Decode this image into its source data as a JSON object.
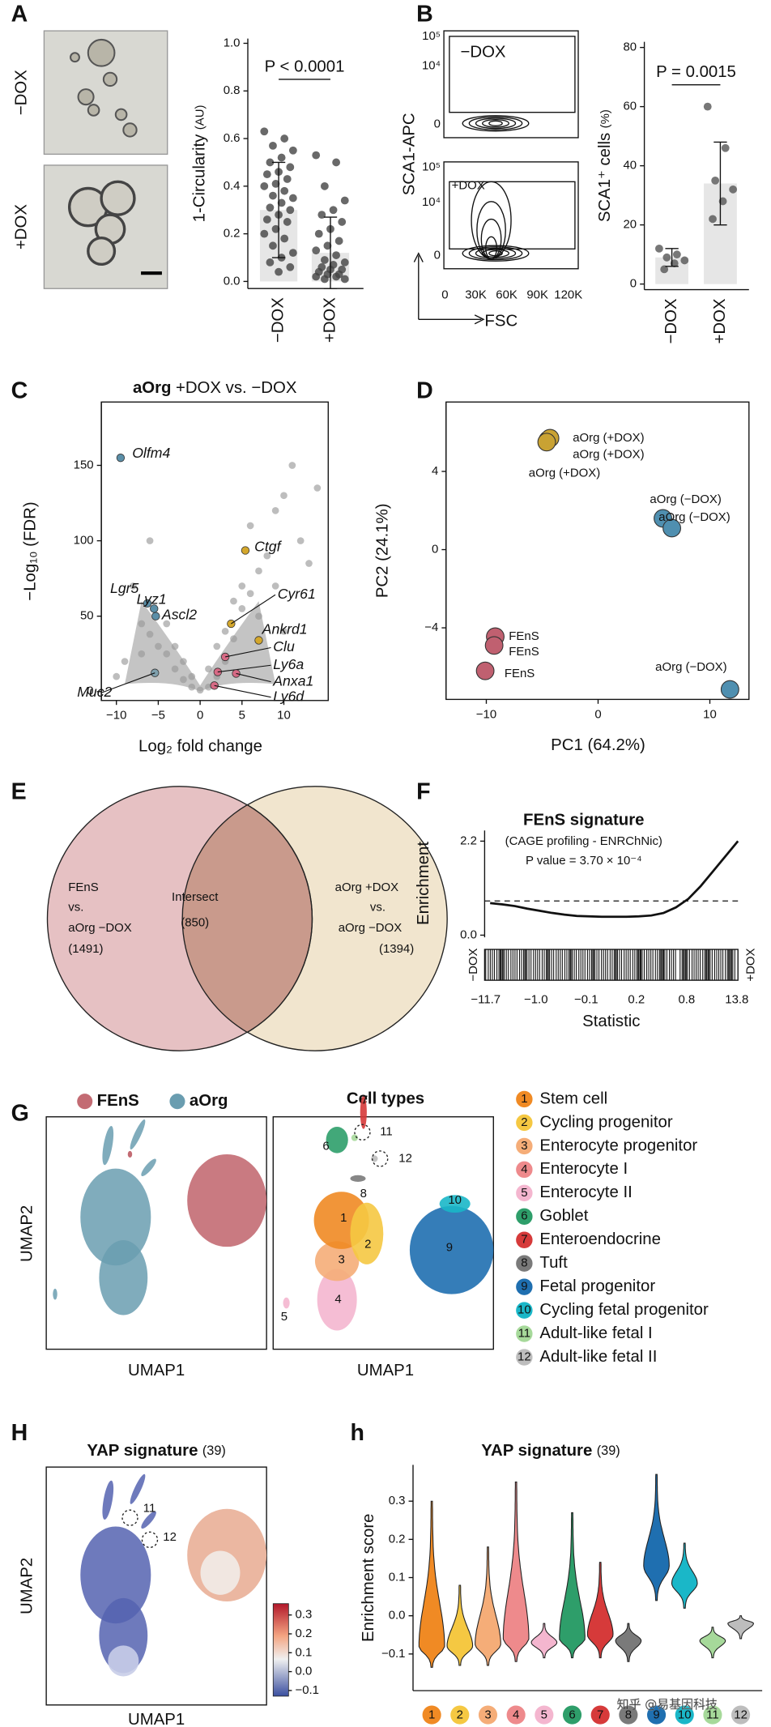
{
  "panel_labels": [
    "A",
    "B",
    "C",
    "D",
    "E",
    "F",
    "G",
    "H",
    "h"
  ],
  "panel_a": {
    "row_labels": [
      "−DOX",
      "+DOX"
    ]
  },
  "panel_b_flow": {
    "ylabel": "SCA1-APC",
    "xlabel": "FSC",
    "panels": [
      "−DOX",
      "+DOX"
    ],
    "yticks": [
      "10⁵",
      "10⁴",
      "0"
    ],
    "xticks": [
      "0",
      "30K",
      "60K",
      "90K",
      "120K"
    ]
  },
  "venn": {
    "left": [
      "FEnS",
      "vs.",
      "aOrg −DOX",
      "(1491)"
    ],
    "intersect": [
      "Intersect",
      "(850)"
    ],
    "right": [
      "aOrg +DOX",
      "vs.",
      "aOrg −DOX",
      "(1394)"
    ]
  },
  "umap_source": {
    "legend": [
      {
        "name": "FEnS",
        "color": "#c36b73"
      },
      {
        "name": "aOrg",
        "color": "#6a9db0"
      }
    ],
    "xlabel": "UMAP1",
    "ylabel": "UMAP2"
  },
  "umap_cell_types": {
    "title": "Cell types",
    "xlabel": "UMAP1",
    "legend": [
      {
        "number": 1,
        "name": "Stem cell",
        "color": "#f08a24"
      },
      {
        "number": 2,
        "name": "Cycling progenitor",
        "color": "#f5c842"
      },
      {
        "number": 3,
        "name": "Enterocyte progenitor",
        "color": "#f5ad78"
      },
      {
        "number": 4,
        "name": "Enterocyte I",
        "color": "#ee8a8c"
      },
      {
        "number": 5,
        "name": "Enterocyte II",
        "color": "#f4b6cf"
      },
      {
        "number": 6,
        "name": "Goblet",
        "color": "#2e9e6a"
      },
      {
        "number": 7,
        "name": "Enteroendocrine",
        "color": "#d63a3a"
      },
      {
        "number": 8,
        "name": "Tuft",
        "color": "#7a7a7a"
      },
      {
        "number": 9,
        "name": "Fetal progenitor",
        "color": "#1f6fb0"
      },
      {
        "number": 10,
        "name": "Cycling fetal progenitor",
        "color": "#1ab7c8"
      },
      {
        "number": 11,
        "name": "Adult-like fetal I",
        "color": "#a6d99a"
      },
      {
        "number": 12,
        "name": "Adult-like fetal II",
        "color": "#bdbdbd"
      }
    ]
  },
  "umap_yap": {
    "title": "YAP signature",
    "title_note": "(39)",
    "cluster_labels": [
      11,
      12
    ],
    "xlabel": "UMAP1",
    "ylabel": "UMAP2",
    "colorbar": {
      "lim": [
        -0.13,
        0.36
      ],
      "ticks": [
        0.3,
        0.2,
        0.1,
        {
          "value": 0,
          "label": "0.0"
        },
        {
          "value": -0.1,
          "label": "−0.1"
        }
      ]
    }
  },
  "watermark": "知乎 @易基因科技",
  "chart_data": [
    {
      "type": "bar",
      "ylabel": "1-Circularity",
      "ylabel_unit": "(AU)",
      "categories": [
        "−DOX",
        "+DOX"
      ],
      "values": [
        0.3,
        0.12
      ],
      "errors": [
        0.2,
        0.15
      ],
      "color": "#e6e6e6",
      "point_color": "#444444",
      "annotation": "P < 0.0001",
      "points": [
        [
          0.63,
          0.6,
          0.57,
          0.55,
          0.52,
          0.5,
          0.48,
          0.46,
          0.45,
          0.43,
          0.41,
          0.4,
          0.38,
          0.36,
          0.35,
          0.33,
          0.31,
          0.3,
          0.28,
          0.26,
          0.25,
          0.22,
          0.2,
          0.18,
          0.15,
          0.12,
          0.1,
          0.08,
          0.06,
          0.04
        ],
        [
          0.53,
          0.5,
          0.4,
          0.34,
          0.3,
          0.28,
          0.25,
          0.22,
          0.2,
          0.17,
          0.15,
          0.13,
          0.11,
          0.09,
          0.08,
          0.07,
          0.06,
          0.05,
          0.05,
          0.04,
          0.03,
          0.03,
          0.02,
          0.02,
          0.01,
          0.01
        ]
      ],
      "ylim": [
        -0.03,
        1.02
      ],
      "yticks": [
        {
          "value": 0,
          "label": "0.0"
        },
        0.2,
        0.4,
        0.6,
        0.8,
        {
          "value": 1,
          "label": "1.0"
        }
      ]
    },
    {
      "type": "bar",
      "ylabel": "SCA1⁺ cells",
      "ylabel_unit": "(%)",
      "categories": [
        "−DOX",
        "+DOX"
      ],
      "values": [
        9,
        34
      ],
      "errors": [
        3,
        14
      ],
      "color": "#e6e6e6",
      "point_color": "#555555",
      "annotation": "P = 0.0015",
      "points": [
        [
          12,
          10,
          9,
          8,
          7,
          5
        ],
        [
          60,
          46,
          35,
          32,
          28,
          22
        ]
      ],
      "ylim": [
        -1.9,
        81.9
      ],
      "yticks": [
        0,
        20,
        40,
        60,
        80
      ]
    },
    {
      "type": "scatter",
      "title_bold": "aOrg",
      "title": "+DOX vs. −DOX",
      "xlabel": "Log₂ fold change",
      "ylabel": "−Log₁₀ (FDR)",
      "color": "#9a9a9a",
      "x": [
        -8,
        -7,
        -6,
        -5,
        -9,
        -4,
        -3,
        -2,
        -1,
        0,
        1,
        2,
        3,
        4,
        5,
        6,
        7,
        8,
        9,
        10,
        12,
        13,
        14,
        11,
        6,
        4,
        3,
        -2,
        -3,
        -6,
        -4,
        2,
        5,
        9,
        -10,
        -7,
        1,
        -1,
        7,
        10
      ],
      "y": [
        70,
        45,
        38,
        30,
        20,
        25,
        15,
        8,
        3,
        1,
        3,
        10,
        20,
        35,
        55,
        65,
        80,
        90,
        120,
        130,
        100,
        85,
        135,
        150,
        110,
        60,
        40,
        20,
        30,
        100,
        45,
        30,
        70,
        70,
        10,
        25,
        15,
        10,
        50,
        40
      ],
      "highlights": [
        {
          "name": "Olfm4",
          "color": "#5b8fa8",
          "x": -9.5,
          "y": 155
        },
        {
          "name": "Lgr5",
          "color": "#5b8fa8",
          "x": -6.3,
          "y": 58.5
        },
        {
          "name": "Lyz1",
          "color": "#5b8fa8",
          "x": -5.5,
          "y": 55
        },
        {
          "name": "Ascl2",
          "color": "#5b8fa8",
          "x": -5.3,
          "y": 50
        },
        {
          "name": "Muc2",
          "color": "#7fa0ad",
          "x": -5.4,
          "y": 12.4
        },
        {
          "name": "Ctgf",
          "color": "#d4a72c",
          "x": 5.4,
          "y": 93.6
        },
        {
          "name": "Cyr61",
          "color": "#d4a72c",
          "x": 3.7,
          "y": 45
        },
        {
          "name": "Ankrd1",
          "color": "#d4a72c",
          "x": 7,
          "y": 34
        },
        {
          "name": "Clu",
          "color": "#d76a85",
          "x": 3,
          "y": 23
        },
        {
          "name": "Ly6a",
          "color": "#d76a85",
          "x": 2.1,
          "y": 13
        },
        {
          "name": "Anxa1",
          "color": "#d76a85",
          "x": 4.3,
          "y": 12
        },
        {
          "name": "Ly6d",
          "color": "#d76a85",
          "x": 1.7,
          "y": 4
        }
      ],
      "xlim": [
        -11.8,
        15.3
      ],
      "ylim": [
        -5.9,
        192
      ],
      "xticks": [
        {
          "value": -10,
          "label": "−10"
        },
        {
          "value": -5,
          "label": "−5"
        },
        0,
        5,
        10
      ],
      "yticks": [
        0,
        50,
        100,
        150
      ]
    },
    {
      "type": "scatter",
      "xlabel": "PC1 (64.2%)",
      "ylabel": "PC2 (24.1%)",
      "series": [
        {
          "name": "aOrg (+DOX)",
          "color": "#c9a233",
          "x": [
            -4.5,
            -4.3,
            -4.6
          ],
          "y": [
            5.6,
            5.7,
            5.5
          ]
        },
        {
          "name": "aOrg (−DOX)",
          "color": "#4f8fb0",
          "x": [
            5.8,
            6.6,
            11.8
          ],
          "y": [
            1.6,
            1.1,
            -7.15
          ]
        },
        {
          "name": "FEnS",
          "color": "#c06070",
          "x": [
            -9.2,
            -9.3,
            -10.1
          ],
          "y": [
            -4.45,
            -4.9,
            -6.2
          ]
        }
      ],
      "xlim": [
        -13.6,
        13.5
      ],
      "ylim": [
        -7.66,
        7.55
      ],
      "xticks": [
        {
          "value": -10,
          "label": "−10"
        },
        0,
        10
      ],
      "yticks": [
        {
          "value": -4,
          "label": "−4"
        },
        0,
        4
      ]
    },
    {
      "type": "line",
      "title": "FEnS signature",
      "subtitle": "(CAGE profiling - ENRChNic)",
      "annotation": "P value = 3.70 × 10⁻⁴",
      "ylabel": "Enrichment",
      "xlabel": "Statistic",
      "side_labels": [
        "−DOX",
        "+DOX"
      ],
      "color": "#111111",
      "values": [
        0.75,
        0.72,
        0.68,
        0.62,
        0.57,
        0.52,
        0.48,
        0.45,
        0.44,
        0.43,
        0.43,
        0.43,
        0.44,
        0.46,
        0.52,
        0.65,
        0.85,
        1.15,
        1.5,
        1.85,
        2.2
      ],
      "reference": 0.8,
      "ylim": [
        -0.05,
        2.45
      ],
      "yticks": [
        {
          "value": 0,
          "label": "0.0"
        },
        2.2
      ],
      "xtick_labels": [
        "−11.7",
        "−1.0",
        "−0.1",
        "0.2",
        "0.8",
        "13.8"
      ]
    },
    {
      "type": "violin",
      "title": "YAP signature",
      "title_note": "(39)",
      "ylabel": "Enrichment score",
      "categories": [
        "1",
        "2",
        "3",
        "4",
        "5",
        "6",
        "7",
        "8",
        "9",
        "10",
        "11",
        "12"
      ],
      "colors": [
        "#f08a24",
        "#f5c842",
        "#f5ad78",
        "#ee8a8c",
        "#f4b6cf",
        "#2e9e6a",
        "#d63a3a",
        "#7a7a7a",
        "#1f6fb0",
        "#1ab7c8",
        "#a6d99a",
        "#bdbdbd"
      ],
      "values": [
        -0.08,
        -0.08,
        -0.075,
        -0.06,
        -0.07,
        -0.06,
        -0.05,
        -0.065,
        0.13,
        0.085,
        -0.065,
        -0.02
      ],
      "max": [
        0.3,
        0.08,
        0.18,
        0.35,
        -0.02,
        0.27,
        0.14,
        -0.02,
        0.37,
        0.19,
        -0.03,
        0
      ],
      "min": [
        -0.135,
        -0.13,
        -0.13,
        -0.12,
        -0.11,
        -0.11,
        -0.11,
        -0.12,
        0.04,
        0.02,
        -0.11,
        -0.06
      ],
      "ylim": [
        -0.196,
        0.395
      ],
      "yticks": [
        {
          "value": -0.1,
          "label": "−0.1"
        },
        {
          "value": 0,
          "label": "0.0"
        },
        0.1,
        0.2,
        0.3
      ]
    }
  ]
}
